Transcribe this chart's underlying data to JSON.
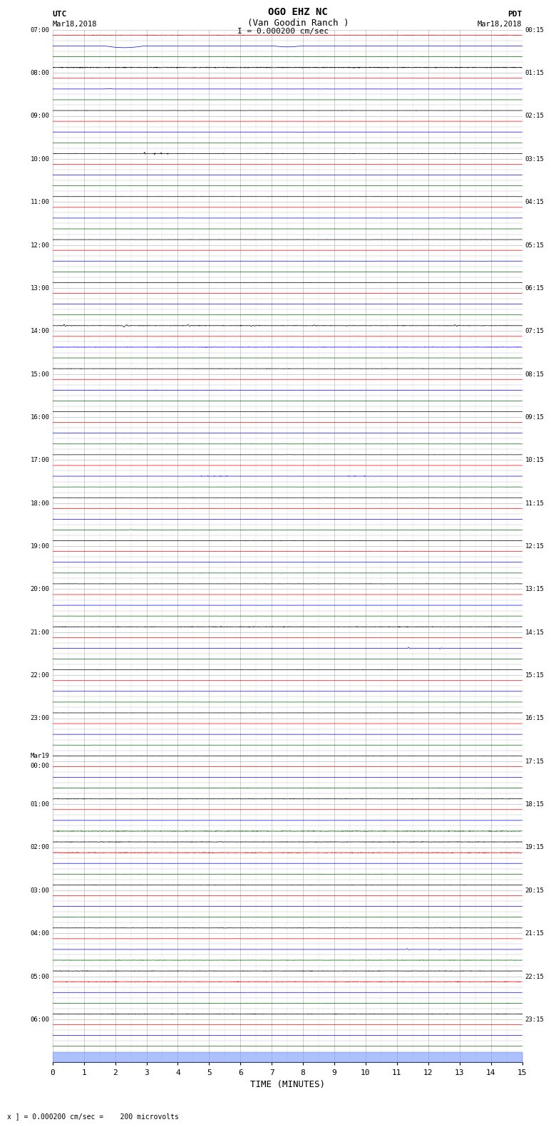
{
  "title_line1": "OGO EHZ NC",
  "title_line2": "(Van Goodin Ranch )",
  "title_line3": "I = 0.000200 cm/sec",
  "xlabel": "TIME (MINUTES)",
  "footer": "x ] = 0.000200 cm/sec =    200 microvolts",
  "xlim": [
    0,
    15
  ],
  "utc_labels": [
    [
      "07:00",
      0
    ],
    [
      "08:00",
      4
    ],
    [
      "09:00",
      8
    ],
    [
      "10:00",
      12
    ],
    [
      "11:00",
      16
    ],
    [
      "12:00",
      20
    ],
    [
      "13:00",
      24
    ],
    [
      "14:00",
      28
    ],
    [
      "15:00",
      32
    ],
    [
      "16:00",
      36
    ],
    [
      "17:00",
      40
    ],
    [
      "18:00",
      44
    ],
    [
      "19:00",
      48
    ],
    [
      "20:00",
      52
    ],
    [
      "21:00",
      56
    ],
    [
      "22:00",
      60
    ],
    [
      "23:00",
      64
    ],
    [
      "Mar19\n00:00",
      68
    ],
    [
      "01:00",
      72
    ],
    [
      "02:00",
      76
    ],
    [
      "03:00",
      80
    ],
    [
      "04:00",
      84
    ],
    [
      "05:00",
      88
    ],
    [
      "06:00",
      92
    ]
  ],
  "pdt_labels": [
    [
      "00:15",
      0
    ],
    [
      "01:15",
      4
    ],
    [
      "02:15",
      8
    ],
    [
      "03:15",
      12
    ],
    [
      "04:15",
      16
    ],
    [
      "05:15",
      20
    ],
    [
      "06:15",
      24
    ],
    [
      "07:15",
      28
    ],
    [
      "08:15",
      32
    ],
    [
      "09:15",
      36
    ],
    [
      "10:15",
      40
    ],
    [
      "11:15",
      44
    ],
    [
      "12:15",
      48
    ],
    [
      "13:15",
      52
    ],
    [
      "14:15",
      56
    ],
    [
      "15:15",
      60
    ],
    [
      "16:15",
      64
    ],
    [
      "17:15",
      68
    ],
    [
      "18:15",
      72
    ],
    [
      "19:15",
      76
    ],
    [
      "20:15",
      80
    ],
    [
      "21:15",
      84
    ],
    [
      "22:15",
      88
    ],
    [
      "23:15",
      92
    ]
  ],
  "num_rows": 96,
  "background_color": "#ffffff",
  "grid_color": "#aaaaaa"
}
